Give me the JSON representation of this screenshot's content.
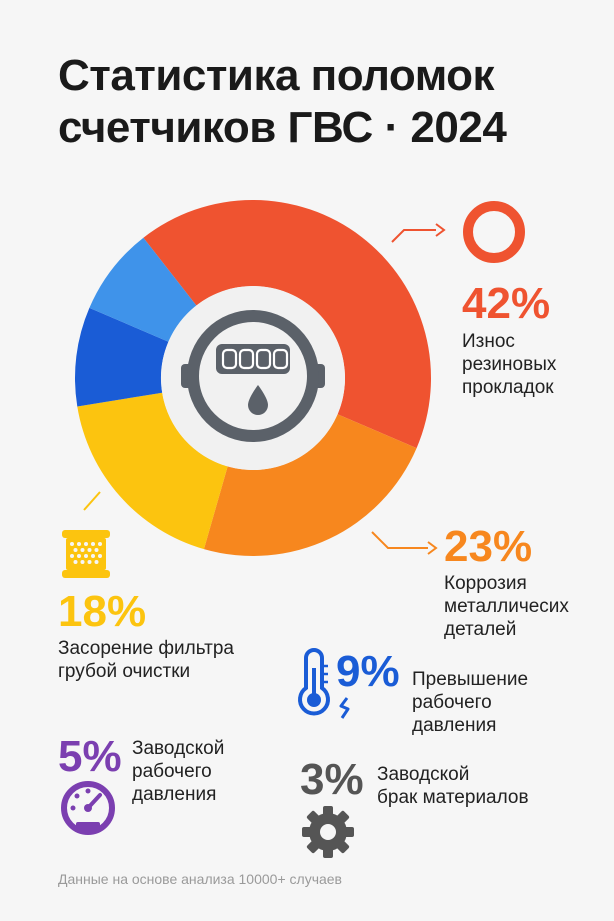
{
  "title_line1": "Статистика поломок",
  "title_line2": "счетчиков ГВС · 2024",
  "footnote": "Данные на основе анализа 10000+ случаев",
  "items": [
    {
      "percent": "42%",
      "label_lines": [
        "Износ",
        "резиновых",
        "прокладок"
      ]
    },
    {
      "percent": "23%",
      "label_lines": [
        "Коррозия",
        "металличесих",
        "деталей"
      ]
    },
    {
      "percent": "18%",
      "label_lines": [
        "Засорение фильтра",
        "грубой очистки"
      ]
    },
    {
      "percent": "9%",
      "label_lines": [
        "Превышение",
        "рабочего",
        "давления"
      ]
    },
    {
      "percent": "5%",
      "label_lines": [
        "Заводской",
        "рабочего",
        "давления"
      ]
    },
    {
      "percent": "3%",
      "label_lines": [
        "Заводской",
        "брак материалов"
      ]
    }
  ],
  "meter_digits": "0000",
  "colors": {
    "s1": "#ef5330",
    "s2": "#f7871e",
    "s3": "#fcc40f",
    "s4": "#1a5cd6",
    "s5": "#3f93ea",
    "purple": "#7b3fb0",
    "grey": "#555555",
    "hole": "#f1f1f1",
    "meter": "#5b6169"
  },
  "chart_data": {
    "type": "pie",
    "style": "donut",
    "categories": [
      "Износ резиновых прокладок",
      "Коррозия металличесих деталей",
      "Засорение фильтра грубой очистки",
      "Превышение рабочего давления",
      "Заводской рабочего давления",
      "Заводской брак материалов"
    ],
    "values": [
      42,
      23,
      18,
      9,
      5,
      3
    ],
    "unit": "%",
    "icons": [
      "ring-icon",
      "",
      "filter-cartridge-icon",
      "thermometer-icon",
      "pressure-gauge-icon",
      "gear-icon"
    ],
    "center_icon": "water-meter-icon"
  }
}
